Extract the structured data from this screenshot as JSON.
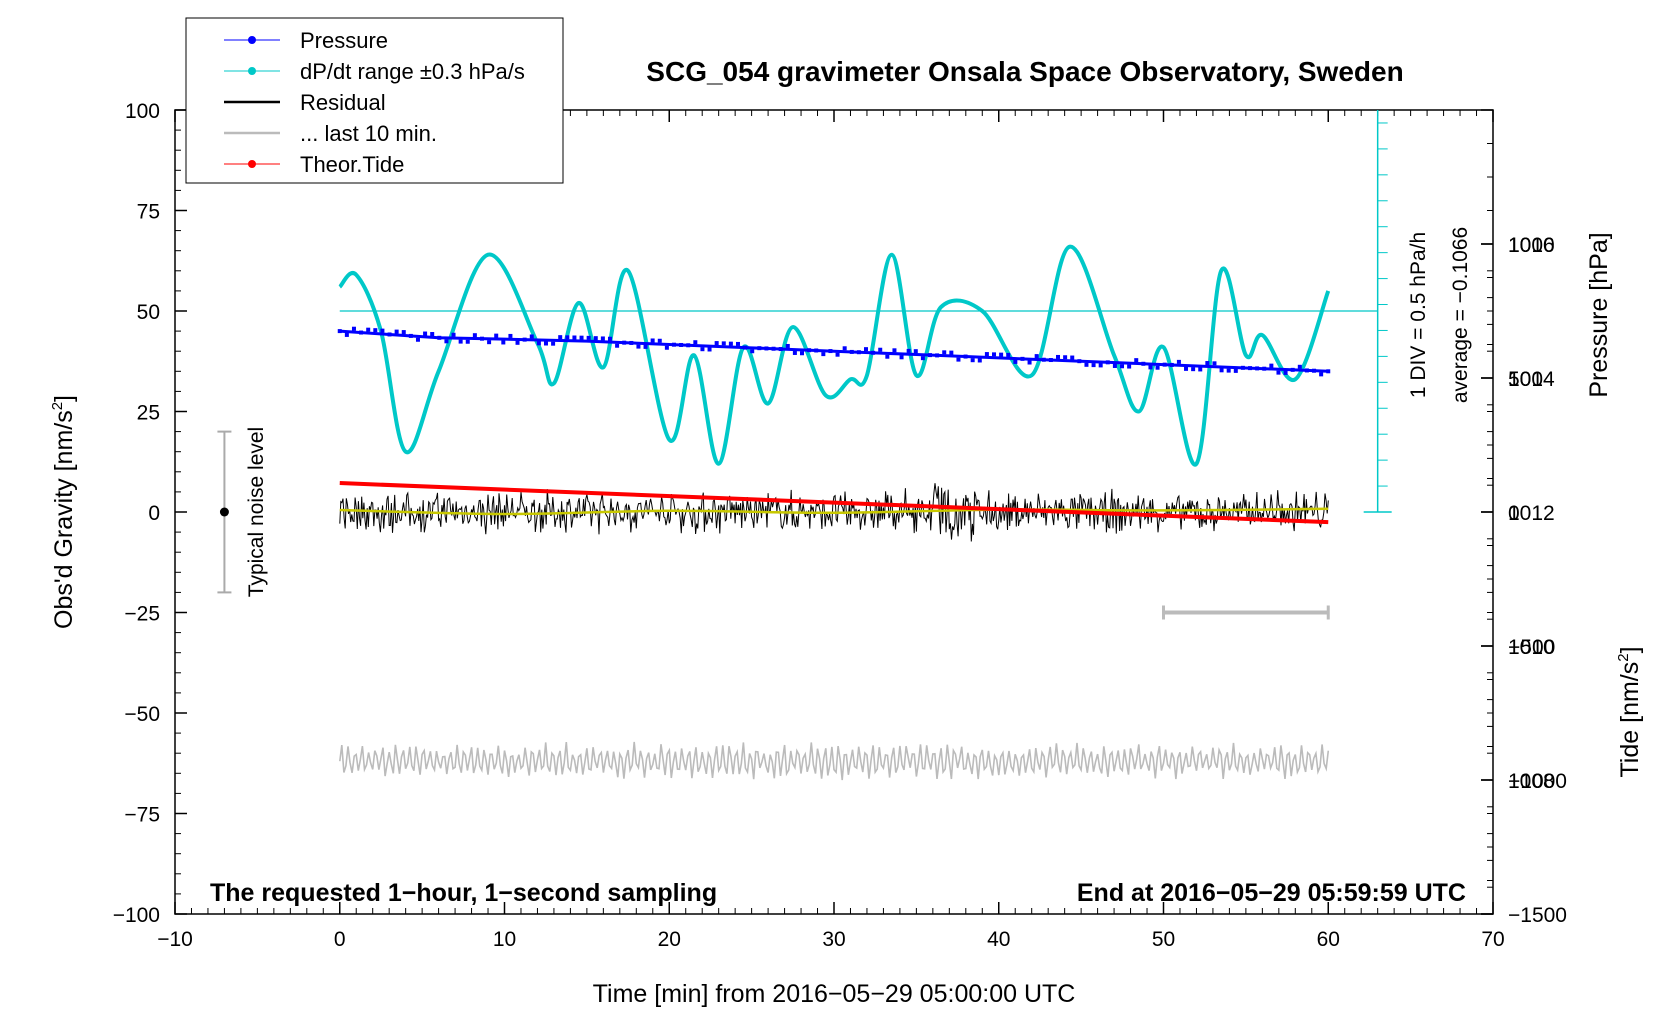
{
  "chart_data": {
    "type": "line",
    "title": "SCG_054 gravimeter Onsala Space Observatory, Sweden",
    "xlabel": "Time [min] from 2016−05−29 05:00:00 UTC",
    "ylabel_left": "Obs'd Gravity [nm/s",
    "ylabel_left_sup": "2",
    "ylabel_left_tail": "]",
    "ylabel_right_top": "Pressure [hPa]",
    "ylabel_right_bottom": "Tide [nm/s",
    "ylabel_right_bottom_sup": "2",
    "ylabel_right_bottom_tail": "]",
    "xlim": [
      -10,
      70
    ],
    "ylim_left": [
      -100,
      100
    ],
    "pressure_range": [
      1006,
      1018
    ],
    "tide_range": [
      -1500,
      1500
    ],
    "x_ticks": [
      "−10",
      "0",
      "10",
      "20",
      "30",
      "40",
      "50",
      "60",
      "70"
    ],
    "y_left_ticks": [
      "100",
      "75",
      "50",
      "25",
      "0",
      "−25",
      "−50",
      "−75",
      "−100"
    ],
    "pressure_ticks": [
      "1016",
      "1014",
      "1012",
      "1010",
      "1008"
    ],
    "tide_ticks": [
      "1000",
      "500",
      "0",
      "−500",
      "−1000",
      "−1500"
    ],
    "legend": [
      {
        "label": "Pressure",
        "color": "#0000ff",
        "marker": "dot"
      },
      {
        "label": "dP/dt range ±0.3 hPa/s",
        "color": "#00c8c8",
        "marker": "dot"
      },
      {
        "label": "Residual",
        "color": "#000000",
        "marker": "line"
      },
      {
        "label": "... last 10 min.",
        "color": "#bbbbbb",
        "marker": "line"
      },
      {
        "label": "Theor.Tide",
        "color": "#ff0000",
        "marker": "dot"
      }
    ],
    "legend_position": "top-left",
    "annotations": {
      "noise": "Typical noise level",
      "div": "1 DIV = 0.5 hPa/h",
      "average": "average = −0.1066",
      "footer_left": "The requested 1−hour, 1−second sampling",
      "footer_right": "End at 2016−05−29 05:59:59 UTC"
    },
    "noise_level_range": [
      -20,
      20
    ],
    "last10_range_min": [
      50,
      60
    ],
    "series": {
      "pressure_hPa": {
        "x": [
          0,
          3,
          6,
          10,
          15,
          20,
          25,
          30,
          35,
          40,
          45,
          50,
          55,
          60
        ],
        "y": [
          1014.7,
          1014.65,
          1014.6,
          1014.58,
          1014.55,
          1014.5,
          1014.45,
          1014.4,
          1014.35,
          1014.3,
          1014.25,
          1014.2,
          1014.15,
          1014.1
        ]
      },
      "dPdt_trace": {
        "x": [
          0,
          1,
          2.5,
          4,
          6,
          9,
          12,
          13,
          14.5,
          16,
          17.5,
          20,
          21.5,
          23,
          24.5,
          26,
          27.5,
          29.5,
          31,
          32,
          33.5,
          35,
          36.5,
          39,
          42,
          44.3,
          47,
          48.5,
          50,
          52,
          53.5,
          55,
          56,
          58,
          60
        ],
        "y": [
          56,
          59,
          45,
          15,
          35,
          64,
          42,
          32,
          52,
          36,
          60,
          18,
          39,
          12,
          41,
          27,
          46,
          29,
          33,
          34,
          64,
          34,
          51,
          50,
          34,
          66,
          39,
          25,
          41,
          12,
          60,
          39,
          44,
          33,
          55
        ]
      },
      "dPdt_reference_level": 50,
      "residual": {
        "center": 0,
        "amplitude_typical": 4,
        "amplitude_max": 8
      },
      "residual_smoothed": {
        "x": [
          0,
          10,
          20,
          30,
          40,
          50,
          60
        ],
        "y": [
          0.5,
          -0.5,
          0.3,
          -0.2,
          0.6,
          0.4,
          0.8
        ]
      },
      "last_10_min": {
        "center": -62,
        "amplitude": 4
      },
      "theor_tide_nm_s2": {
        "x": [
          0,
          60
        ],
        "y": [
          108,
          -38
        ]
      }
    }
  }
}
